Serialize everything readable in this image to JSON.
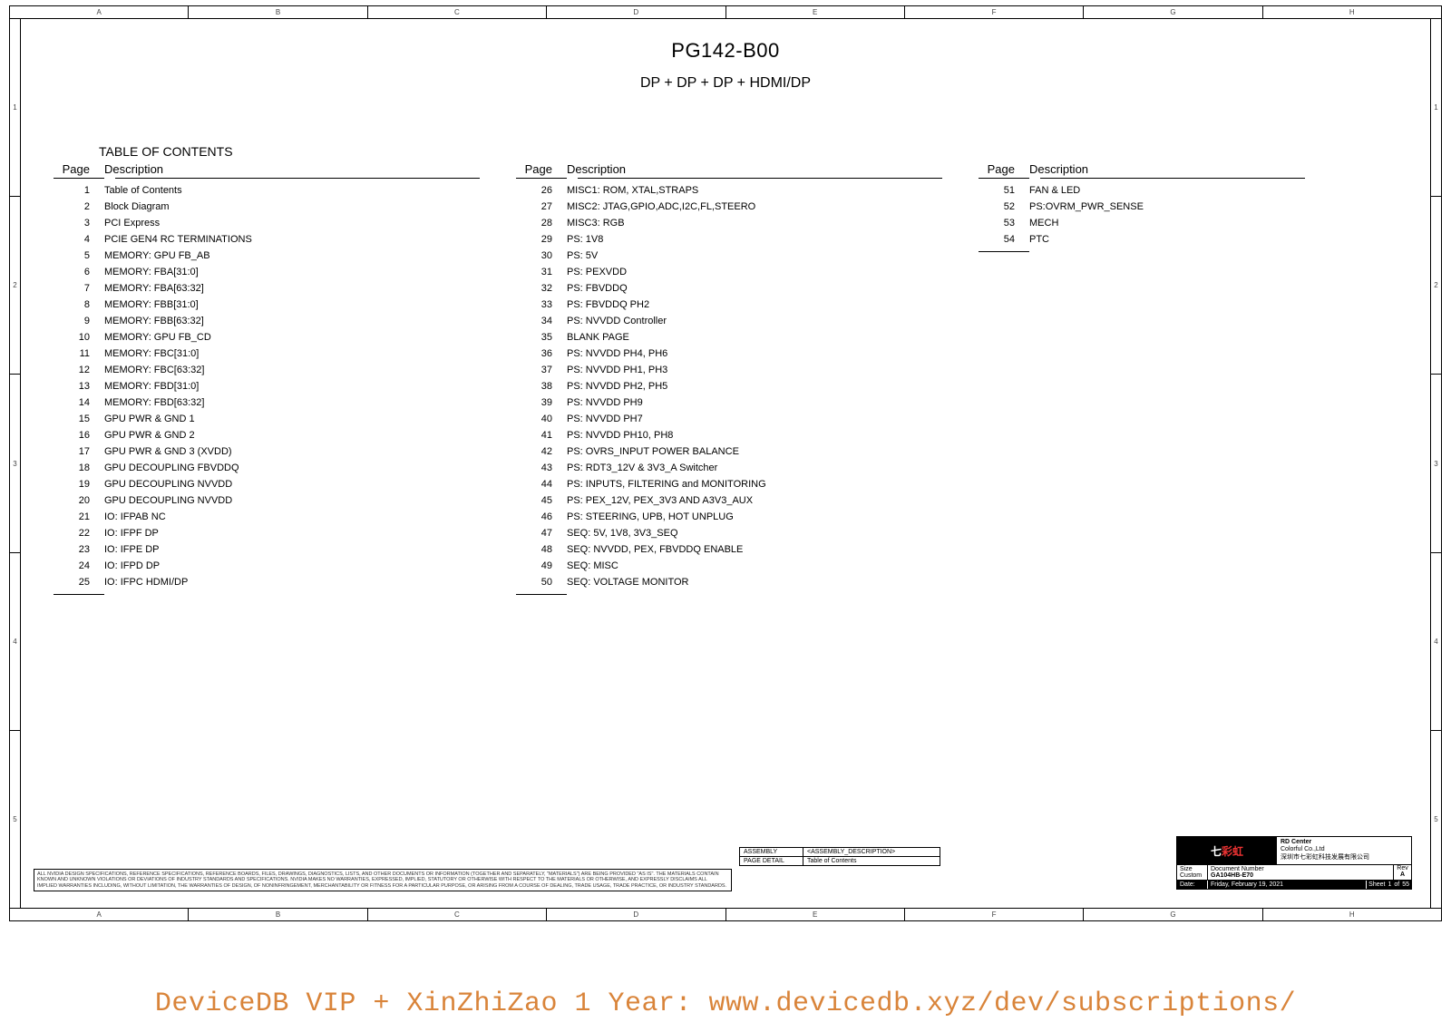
{
  "frame": {
    "cols": [
      "A",
      "B",
      "C",
      "D",
      "E",
      "F",
      "G",
      "H"
    ],
    "rows": [
      "1",
      "2",
      "3",
      "4",
      "5"
    ]
  },
  "header": {
    "board": "PG142-B00",
    "subtitle": "DP + DP + DP + HDMI/DP"
  },
  "toc": {
    "heading": "TABLE OF CONTENTS",
    "col_head_page": "Page",
    "col_head_desc": "Description",
    "col1": [
      {
        "p": "1",
        "d": "Table of Contents"
      },
      {
        "p": "2",
        "d": "Block Diagram"
      },
      {
        "p": "3",
        "d": "PCI Express"
      },
      {
        "p": "4",
        "d": "PCIE GEN4 RC TERMINATIONS"
      },
      {
        "p": "5",
        "d": "MEMORY: GPU FB_AB"
      },
      {
        "p": "6",
        "d": "MEMORY: FBA[31:0]"
      },
      {
        "p": "7",
        "d": "MEMORY: FBA[63:32]"
      },
      {
        "p": "8",
        "d": "MEMORY: FBB[31:0]"
      },
      {
        "p": "9",
        "d": "MEMORY: FBB[63:32]"
      },
      {
        "p": "10",
        "d": "MEMORY: GPU FB_CD"
      },
      {
        "p": "11",
        "d": "MEMORY: FBC[31:0]"
      },
      {
        "p": "12",
        "d": "MEMORY: FBC[63:32]"
      },
      {
        "p": "13",
        "d": "MEMORY: FBD[31:0]"
      },
      {
        "p": "14",
        "d": "MEMORY: FBD[63:32]"
      },
      {
        "p": "15",
        "d": "GPU PWR & GND 1"
      },
      {
        "p": "16",
        "d": "GPU PWR & GND 2"
      },
      {
        "p": "17",
        "d": "GPU PWR & GND 3 (XVDD)"
      },
      {
        "p": "18",
        "d": "GPU DECOUPLING FBVDDQ"
      },
      {
        "p": "19",
        "d": "GPU DECOUPLING NVVDD"
      },
      {
        "p": "20",
        "d": "GPU DECOUPLING NVVDD"
      },
      {
        "p": "21",
        "d": "IO: IFPAB NC"
      },
      {
        "p": "22",
        "d": "IO: IFPF DP"
      },
      {
        "p": "23",
        "d": "IO: IFPE DP"
      },
      {
        "p": "24",
        "d": "IO: IFPD DP"
      },
      {
        "p": "25",
        "d": "IO: IFPC HDMI/DP"
      }
    ],
    "col2": [
      {
        "p": "26",
        "d": "MISC1: ROM, XTAL,STRAPS"
      },
      {
        "p": "27",
        "d": "MISC2: JTAG,GPIO,ADC,I2C,FL,STEERO"
      },
      {
        "p": "28",
        "d": "MISC3: RGB"
      },
      {
        "p": "29",
        "d": "PS: 1V8"
      },
      {
        "p": "30",
        "d": "PS: 5V"
      },
      {
        "p": "31",
        "d": "PS: PEXVDD"
      },
      {
        "p": "32",
        "d": "PS: FBVDDQ"
      },
      {
        "p": "33",
        "d": "PS: FBVDDQ PH2"
      },
      {
        "p": "34",
        "d": "PS: NVVDD Controller"
      },
      {
        "p": "35",
        "d": "BLANK PAGE"
      },
      {
        "p": "36",
        "d": "PS: NVVDD PH4, PH6"
      },
      {
        "p": "37",
        "d": "PS: NVVDD PH1, PH3"
      },
      {
        "p": "38",
        "d": "PS: NVVDD PH2, PH5"
      },
      {
        "p": "39",
        "d": "PS: NVVDD PH9"
      },
      {
        "p": "40",
        "d": "PS: NVVDD PH7"
      },
      {
        "p": "41",
        "d": "PS: NVVDD PH10, PH8"
      },
      {
        "p": "42",
        "d": "PS: OVRS_INPUT POWER BALANCE"
      },
      {
        "p": "43",
        "d": "PS: RDT3_12V & 3V3_A Switcher"
      },
      {
        "p": "44",
        "d": "PS: INPUTS, FILTERING and MONITORING"
      },
      {
        "p": "45",
        "d": "PS: PEX_12V, PEX_3V3 AND A3V3_AUX"
      },
      {
        "p": "46",
        "d": "PS: STEERING, UPB, HOT UNPLUG"
      },
      {
        "p": "47",
        "d": "SEQ: 5V, 1V8, 3V3_SEQ"
      },
      {
        "p": "48",
        "d": "SEQ: NVVDD, PEX, FBVDDQ ENABLE"
      },
      {
        "p": "49",
        "d": "SEQ: MISC"
      },
      {
        "p": "50",
        "d": "SEQ: VOLTAGE MONITOR"
      }
    ],
    "col3": [
      {
        "p": "51",
        "d": "FAN & LED"
      },
      {
        "p": "52",
        "d": "PS:OVRM_PWR_SENSE"
      },
      {
        "p": "53",
        "d": "MECH"
      },
      {
        "p": "54",
        "d": "PTC"
      }
    ]
  },
  "asm": {
    "r1l": "ASSEMBLY",
    "r1r": "<ASSEMBLY_DESCRIPTION>",
    "r2l": "PAGE DETAIL",
    "r2r": "Table of Contents"
  },
  "docbox": {
    "logo_main": "七",
    "logo_color": "彩虹",
    "company1": "RD Center",
    "company2": "Colorful Co.,Ltd",
    "company3": "深圳市七彩虹科技发展有限公司",
    "size_l": "Size",
    "size_v": "Custom",
    "docnum_l": "Document Number",
    "docnum_v": "GA104HB-E70",
    "rev_l": "Rev",
    "rev_v": "A",
    "date_l": "Date:",
    "date_v": "Friday, February 19, 2021",
    "sheet_l": "Sheet",
    "sheet_a": "1",
    "sheet_of": "of",
    "sheet_b": "55"
  },
  "disclaimer": "ALL NVIDIA DESIGN SPECIFICATIONS, REFERENCE SPECIFICATIONS, REFERENCE BOARDS, FILES, DRAWINGS, DIAGNOSTICS, LISTS, AND OTHER DOCUMENTS OR INFORMATION (TOGETHER AND SEPARATELY, \"MATERIALS\") ARE BEING PROVIDED \"AS IS\". THE MATERIALS CONTAIN KNOWN AND UNKNOWN VIOLATIONS OR DEVIATIONS OF INDUSTRY STANDARDS AND SPECIFICATIONS. NVIDIA MAKES NO WARRANTIES, EXPRESSED, IMPLIED, STATUTORY OR OTHERWISE WITH RESPECT TO THE MATERIALS OR OTHERWISE, AND EXPRESSLY DISCLAIMS ALL IMPLIED WARRANTIES INCLUDING, WITHOUT LIMITATION, THE WARRANTIES OF DESIGN, OF NONINFRINGEMENT, MERCHANTABILITY OR FITNESS FOR A PARTICULAR PURPOSE, OR ARISING FROM A COURSE OF DEALING, TRADE USAGE, TRADE PRACTICE, OR INDUSTRY STANDARDS.",
  "watermark": "DeviceDB VIP + XinZhiZao 1 Year: www.devicedb.xyz/dev/subscriptions/"
}
